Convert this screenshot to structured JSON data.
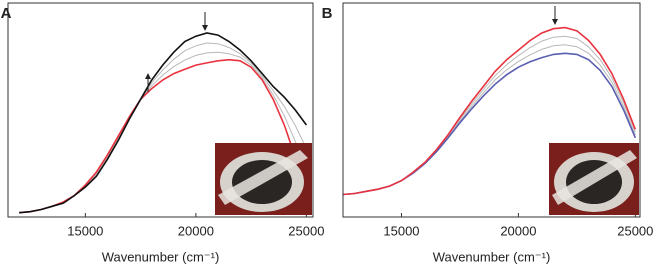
{
  "chart_data": [
    {
      "type": "line",
      "panel_label": "A",
      "x_label": "Wavenumber (cm⁻¹)",
      "xlim": [
        11500,
        25300
      ],
      "xticks": [
        15000,
        20000,
        25000
      ],
      "ylim": [
        0,
        1
      ],
      "x": [
        12000,
        12500,
        13000,
        13500,
        14000,
        14500,
        15000,
        15500,
        16000,
        16500,
        17000,
        17500,
        18000,
        18500,
        19000,
        19500,
        20000,
        20500,
        21000,
        21500,
        22000,
        22500,
        23000,
        23500,
        24000,
        24500,
        25000
      ],
      "series": [
        {
          "color": "#b8b8b8",
          "values": [
            0.02,
            0.025,
            0.035,
            0.05,
            0.067,
            0.1,
            0.147,
            0.203,
            0.283,
            0.373,
            0.467,
            0.55,
            0.613,
            0.663,
            0.703,
            0.733,
            0.755,
            0.767,
            0.77,
            0.763,
            0.747,
            0.71,
            0.65,
            0.57,
            0.473,
            0.353,
            0.21
          ]
        },
        {
          "color": "#b8b8b8",
          "values": [
            0.02,
            0.025,
            0.035,
            0.05,
            0.067,
            0.1,
            0.143,
            0.197,
            0.277,
            0.367,
            0.463,
            0.55,
            0.627,
            0.687,
            0.737,
            0.777,
            0.8,
            0.813,
            0.81,
            0.792,
            0.763,
            0.72,
            0.66,
            0.59,
            0.517,
            0.427,
            0.32
          ]
        },
        {
          "color": "#e8333f",
          "values": [
            0.02,
            0.025,
            0.035,
            0.05,
            0.07,
            0.1,
            0.15,
            0.21,
            0.29,
            0.38,
            0.47,
            0.55,
            0.6,
            0.64,
            0.67,
            0.69,
            0.71,
            0.72,
            0.73,
            0.735,
            0.73,
            0.7,
            0.64,
            0.55,
            0.43,
            0.28,
            0.1
          ]
        },
        {
          "color": "#111111",
          "values": [
            0.02,
            0.025,
            0.035,
            0.05,
            0.065,
            0.1,
            0.14,
            0.19,
            0.27,
            0.36,
            0.46,
            0.55,
            0.64,
            0.71,
            0.77,
            0.82,
            0.845,
            0.86,
            0.85,
            0.82,
            0.78,
            0.73,
            0.67,
            0.61,
            0.56,
            0.5,
            0.43
          ]
        }
      ]
    },
    {
      "type": "line",
      "panel_label": "B",
      "x_label": "Wavenumber (cm⁻¹)",
      "xlim": [
        12500,
        25200
      ],
      "xticks": [
        15000,
        20000,
        25000
      ],
      "ylim": [
        0,
        1
      ],
      "x": [
        12500,
        13000,
        13500,
        14000,
        14500,
        15000,
        15500,
        16000,
        16500,
        17000,
        17500,
        18000,
        18500,
        19000,
        19500,
        20000,
        20500,
        21000,
        21500,
        22000,
        22500,
        23000,
        23500,
        24000,
        24500,
        25000
      ],
      "series": [
        {
          "color": "#b8b8b8",
          "values": [
            0.105,
            0.11,
            0.12,
            0.13,
            0.145,
            0.17,
            0.208,
            0.253,
            0.312,
            0.38,
            0.457,
            0.528,
            0.595,
            0.66,
            0.712,
            0.754,
            0.792,
            0.822,
            0.84,
            0.845,
            0.834,
            0.795,
            0.735,
            0.65,
            0.534,
            0.397
          ]
        },
        {
          "color": "#b8b8b8",
          "values": [
            0.105,
            0.11,
            0.12,
            0.13,
            0.145,
            0.17,
            0.207,
            0.252,
            0.308,
            0.375,
            0.448,
            0.517,
            0.58,
            0.64,
            0.688,
            0.726,
            0.758,
            0.783,
            0.8,
            0.805,
            0.796,
            0.765,
            0.71,
            0.63,
            0.517,
            0.383
          ]
        },
        {
          "color": "#5a5fb0",
          "values": [
            0.105,
            0.11,
            0.12,
            0.13,
            0.145,
            0.17,
            0.205,
            0.25,
            0.305,
            0.37,
            0.44,
            0.505,
            0.565,
            0.62,
            0.665,
            0.7,
            0.725,
            0.745,
            0.76,
            0.765,
            0.76,
            0.735,
            0.685,
            0.61,
            0.5,
            0.37
          ]
        },
        {
          "color": "#e8333f",
          "values": [
            0.105,
            0.11,
            0.12,
            0.13,
            0.145,
            0.17,
            0.21,
            0.255,
            0.315,
            0.385,
            0.465,
            0.54,
            0.61,
            0.68,
            0.735,
            0.78,
            0.825,
            0.86,
            0.88,
            0.885,
            0.87,
            0.825,
            0.76,
            0.67,
            0.55,
            0.41
          ]
        }
      ]
    }
  ]
}
